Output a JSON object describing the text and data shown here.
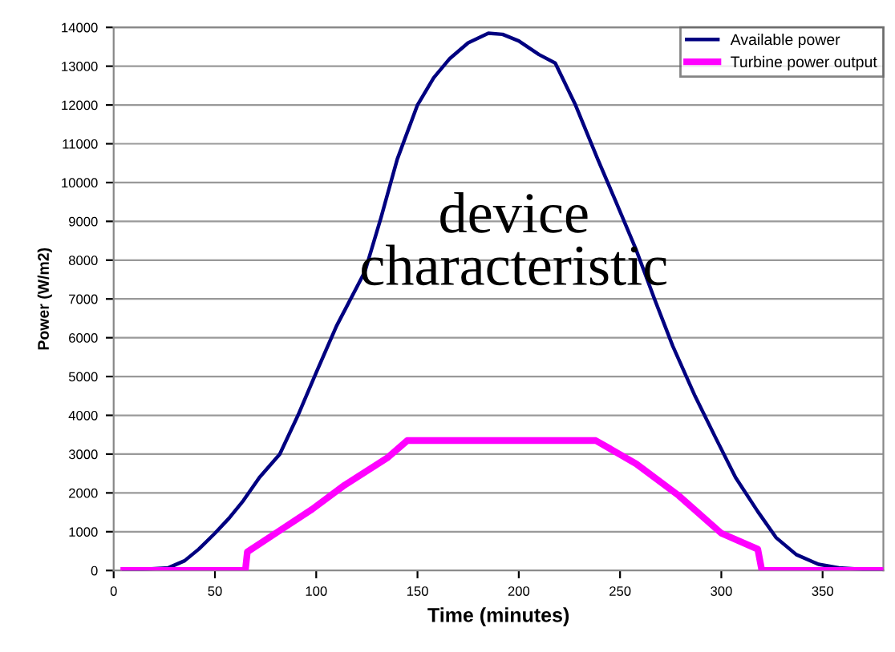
{
  "chart_data": {
    "type": "line",
    "xlabel": "Time (minutes)",
    "ylabel": "Power (W/m2)",
    "xlim": [
      0,
      380
    ],
    "xticks": [
      0,
      50,
      100,
      150,
      200,
      250,
      300,
      350
    ],
    "ylim": [
      0,
      14000
    ],
    "yticks": [
      0,
      1000,
      2000,
      3000,
      4000,
      5000,
      6000,
      7000,
      8000,
      9000,
      10000,
      11000,
      12000,
      13000,
      14000
    ],
    "grid": "y",
    "legend": "top right",
    "marker": "none",
    "line_style": "solid",
    "annotations": [
      "device\ncharacteristic"
    ],
    "series": [
      {
        "name": "Available power",
        "color": "#000080",
        "x": [
          5,
          27,
          35,
          42,
          50,
          57,
          64,
          72,
          82,
          91,
          100,
          110,
          124,
          132,
          140,
          150,
          158,
          166,
          175,
          185,
          192,
          200,
          210,
          218,
          228,
          239,
          248,
          258,
          267,
          276,
          287,
          297,
          307,
          318,
          327,
          337,
          348,
          358,
          379
        ],
        "values": [
          0,
          70,
          250,
          550,
          960,
          1350,
          1800,
          2400,
          3000,
          4000,
          5100,
          6300,
          7700,
          9100,
          10600,
          12000,
          12700,
          13200,
          13600,
          13850,
          13820,
          13650,
          13300,
          13080,
          12000,
          10600,
          9500,
          8260,
          7000,
          5790,
          4500,
          3440,
          2400,
          1520,
          850,
          410,
          160,
          70,
          0
        ]
      },
      {
        "name": "Turbine power output",
        "color": "#ff00ff",
        "x": [
          5,
          65,
          66,
          82,
          98,
          114,
          135,
          145,
          238,
          258,
          279,
          300,
          318,
          320,
          380
        ],
        "values": [
          0,
          0,
          480,
          1030,
          1580,
          2200,
          2900,
          3350,
          3350,
          2750,
          1930,
          960,
          550,
          0,
          0
        ]
      }
    ]
  }
}
